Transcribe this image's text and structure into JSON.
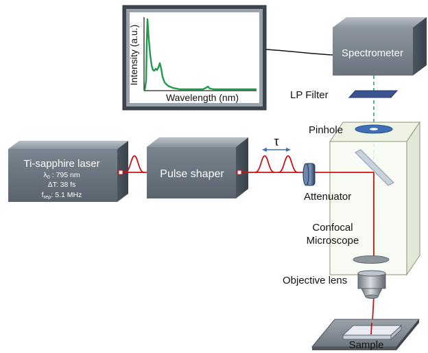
{
  "diagram": {
    "monitor": {
      "y_axis_label": "Intensity (a.u.)",
      "x_axis_label": "Wavelength (nm)"
    },
    "laser": {
      "title": "Ti-sapphire laser",
      "lambda_symbol": "λ",
      "lambda_sub": "0",
      "lambda_value": " : 795 nm",
      "delta_t": "ΔT: 38 fs",
      "frep_symbol": "f",
      "frep_sub": "rep",
      "frep_value": ": 5.1 MHz"
    },
    "pulse_shaper": "Pulse shaper",
    "delay_symbol": "τ",
    "attenuator": "Attenuator",
    "spectrometer": "Spectrometer",
    "lp_filter": "LP Filter",
    "pinhole": "Pinhole",
    "microscope_line1": "Confocal",
    "microscope_line2": "Microscope",
    "objective": "Objective lens",
    "sample": "Sample"
  },
  "colors": {
    "beam": "#cc1111",
    "detection_path": "#2aa080",
    "spectrum": "#1f9a4a",
    "box_face": "#6a7480",
    "box_top": "#9aa3ad",
    "box_side": "#4d5660",
    "filter": "#3a5490",
    "pinhole_disc": "#3f6fb5"
  }
}
